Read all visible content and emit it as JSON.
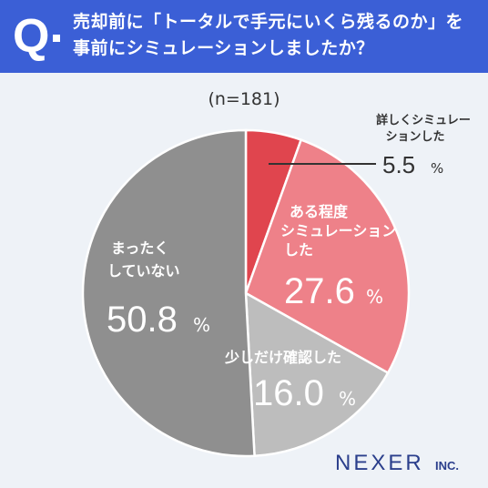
{
  "header": {
    "q_mark": "Q",
    "question_line1": "売却前に「トータルで手元にいくら残るのか」を",
    "question_line2": "事前にシミュレーションしましたか？"
  },
  "sample_size": "(n=181)",
  "brand": {
    "name": "NEXER",
    "suffix": "INC."
  },
  "colors": {
    "header_bg": "#3b5fd6",
    "detailed": "#e0454e",
    "somewhat": "#ee8189",
    "quick": "#bdbdbd",
    "none": "#8f8f8f",
    "label_light": "#ffffff",
    "label_dark": "#333333"
  },
  "chart_data": {
    "type": "pie",
    "title": "売却前に「トータルで手元にいくら残るのか」を事前にシミュレーションしましたか？",
    "n": 181,
    "slices": [
      {
        "label": "詳しくシミュレーションした",
        "value": 5.5,
        "display": "5.5",
        "color": "#e0454e"
      },
      {
        "label": "ある程度シミュレーションした",
        "value": 27.6,
        "display": "27.6",
        "color": "#ee8189"
      },
      {
        "label": "少しだけ確認した",
        "value": 16.0,
        "display": "16.0",
        "color": "#bdbdbd"
      },
      {
        "label": "まったくしていない",
        "value": 50.8,
        "display": "50.8",
        "color": "#8f8f8f"
      }
    ],
    "unit": "%",
    "start_angle": "12 o'clock",
    "direction": "clockwise"
  },
  "labels": {
    "detailed": {
      "line1": "詳しくシミュレー",
      "line2": "ションした",
      "value": "5.5",
      "unit": "%"
    },
    "somewhat": {
      "line1": "ある程度",
      "line2": "シミュレーション",
      "line3": "した",
      "value": "27.6",
      "unit": "%"
    },
    "quick": {
      "line1": "少しだけ確認した",
      "value": "16.0",
      "unit": "%"
    },
    "none": {
      "line1": "まったく",
      "line2": "していない",
      "value": "50.8",
      "unit": "%"
    }
  }
}
